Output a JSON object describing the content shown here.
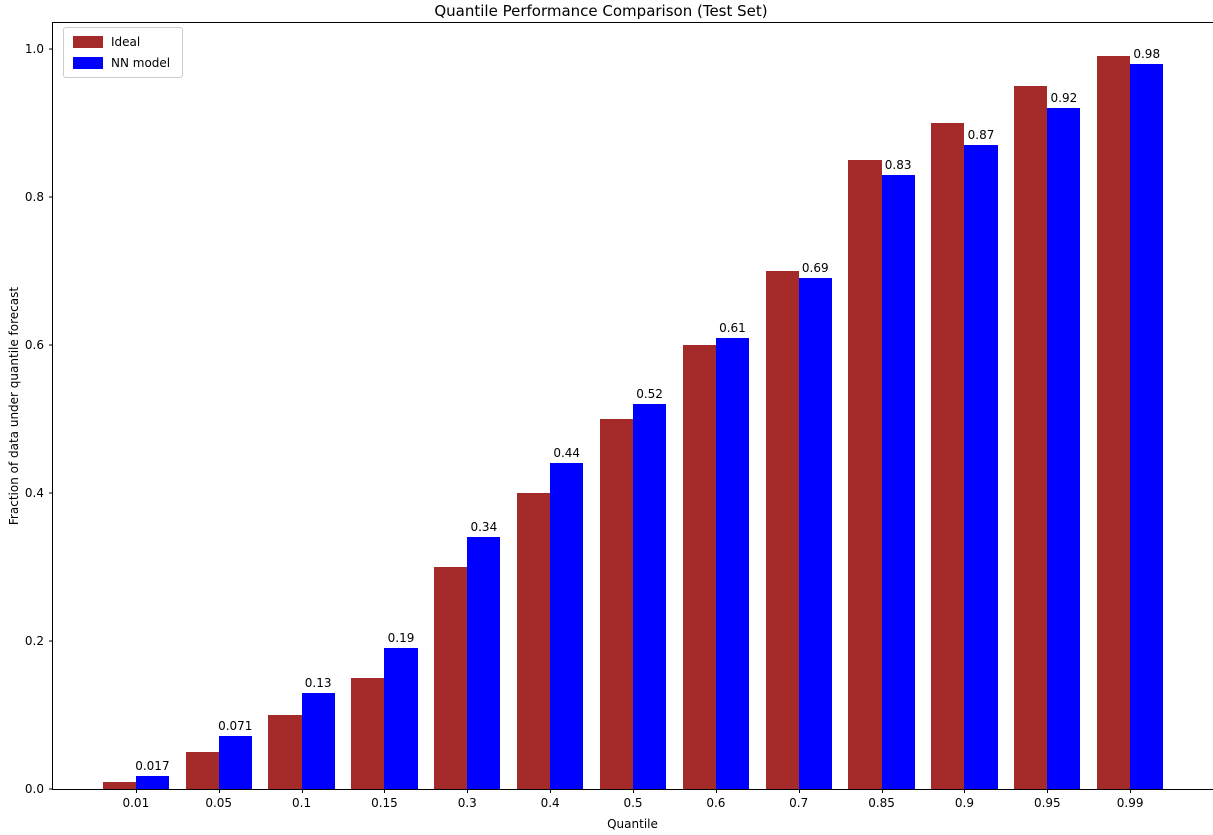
{
  "figure": {
    "title": "Quantile Performance Comparison (Test Set)"
  },
  "chart_data": {
    "type": "bar",
    "title": "Quantile Performance Comparison (Test Set)",
    "xlabel": "Quantile",
    "ylabel": "Fraction of data under quantile forecast",
    "categories": [
      "0.01",
      "0.05",
      "0.1",
      "0.15",
      "0.3",
      "0.4",
      "0.5",
      "0.6",
      "0.7",
      "0.85",
      "0.9",
      "0.95",
      "0.99"
    ],
    "series": [
      {
        "name": "Ideal",
        "color": "#A52A2A",
        "values": [
          0.01,
          0.05,
          0.1,
          0.15,
          0.3,
          0.4,
          0.5,
          0.6,
          0.7,
          0.85,
          0.9,
          0.95,
          0.99
        ]
      },
      {
        "name": "NN model",
        "color": "#0000FF",
        "values": [
          0.017,
          0.071,
          0.13,
          0.19,
          0.34,
          0.44,
          0.52,
          0.61,
          0.69,
          0.83,
          0.87,
          0.92,
          0.98
        ]
      }
    ],
    "value_labels": [
      "0.017",
      "0.071",
      "0.13",
      "0.19",
      "0.34",
      "0.44",
      "0.52",
      "0.61",
      "0.69",
      "0.83",
      "0.87",
      "0.92",
      "0.98"
    ],
    "value_labels_on_series": "NN model",
    "y_ticks": [
      "0.0",
      "0.2",
      "0.4",
      "0.6",
      "0.8",
      "1.0"
    ],
    "ylim": [
      0,
      1.035
    ],
    "grid": false,
    "legend": {
      "position": "upper-left",
      "entries": [
        "Ideal",
        "NN model"
      ]
    },
    "axis_color": "#000000",
    "background": "#ffffff"
  }
}
